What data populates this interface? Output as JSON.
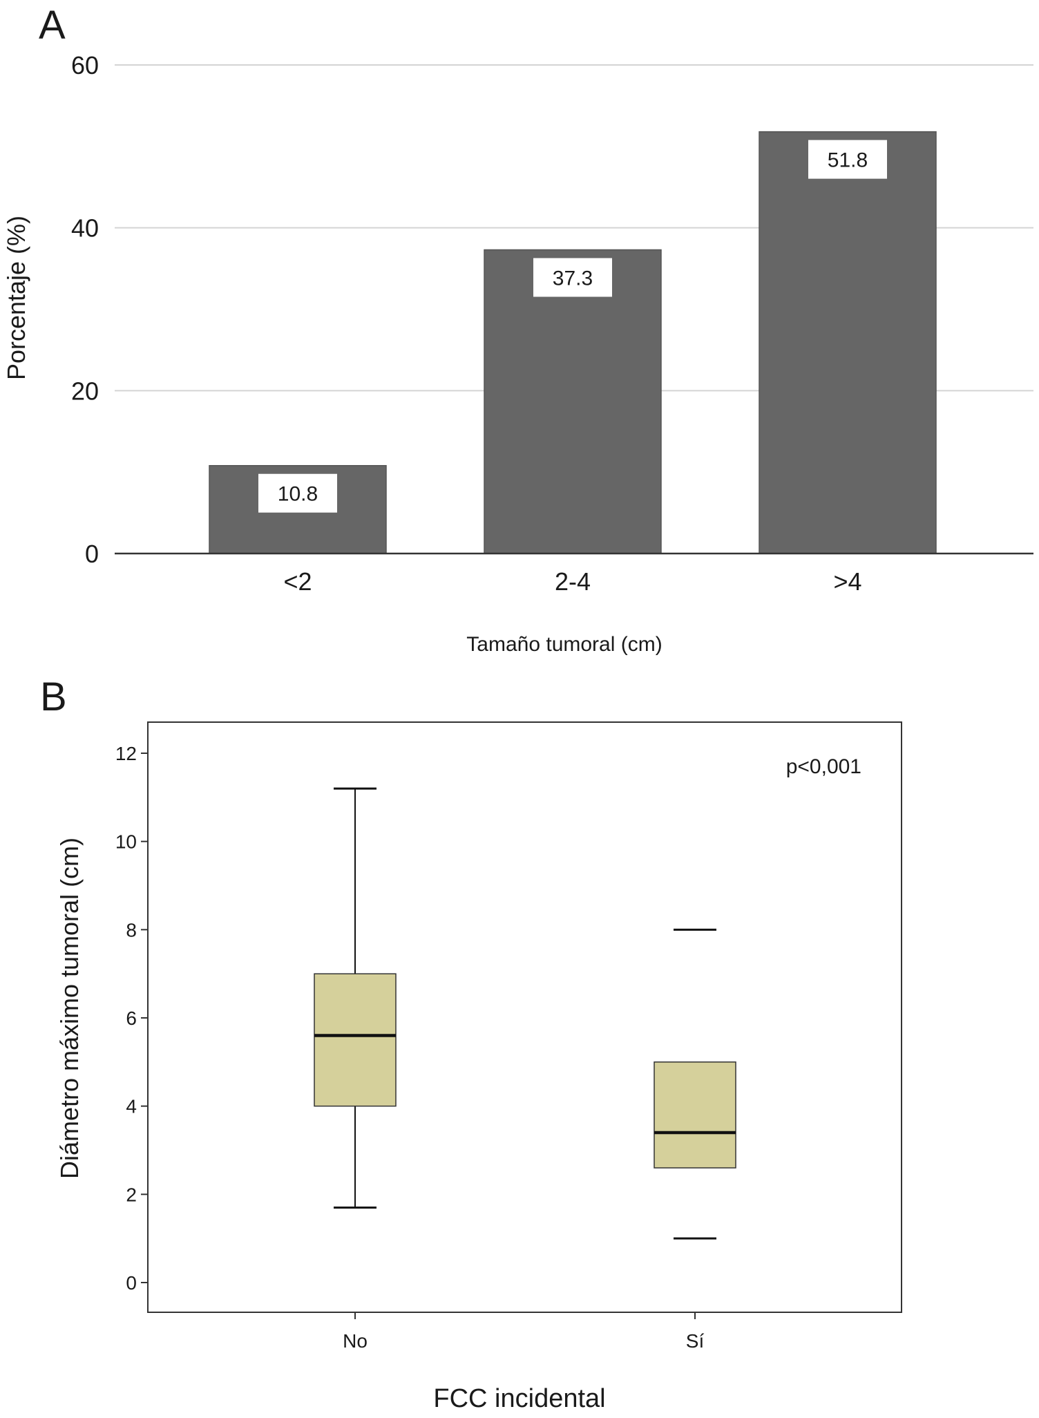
{
  "chart_data": [
    {
      "panel": "A",
      "type": "bar",
      "categories": [
        "<2",
        "2-4",
        ">4"
      ],
      "values": [
        10.8,
        37.3,
        51.8
      ],
      "data_labels": [
        "10.8",
        "37.3",
        "51.8"
      ],
      "xlabel": "Tamaño tumoral (cm)",
      "ylabel": "Porcentaje (%)",
      "ylim": [
        0,
        60
      ],
      "yticks": [
        "0",
        "20",
        "40",
        "60"
      ],
      "grid": true,
      "bar_color": "#666666"
    },
    {
      "panel": "B",
      "type": "box",
      "categories": [
        "No",
        "Sí"
      ],
      "boxes": [
        {
          "whisker_low": 1.7,
          "q1": 4.0,
          "median": 5.6,
          "q3": 7.0,
          "whisker_high": 11.2
        },
        {
          "whisker_low": 1.0,
          "q1": 2.6,
          "median": 3.4,
          "q3": 5.0,
          "whisker_high": 8.0
        }
      ],
      "xlabel": "FCC incidental",
      "ylabel": "Diámetro máximo tumoral (cm)",
      "ylim": [
        0,
        12
      ],
      "yticks": [
        "0",
        "2",
        "4",
        "6",
        "8",
        "10",
        "12"
      ],
      "annotation": "p<0,001",
      "box_color": "#d5d09b",
      "grid": false
    }
  ]
}
